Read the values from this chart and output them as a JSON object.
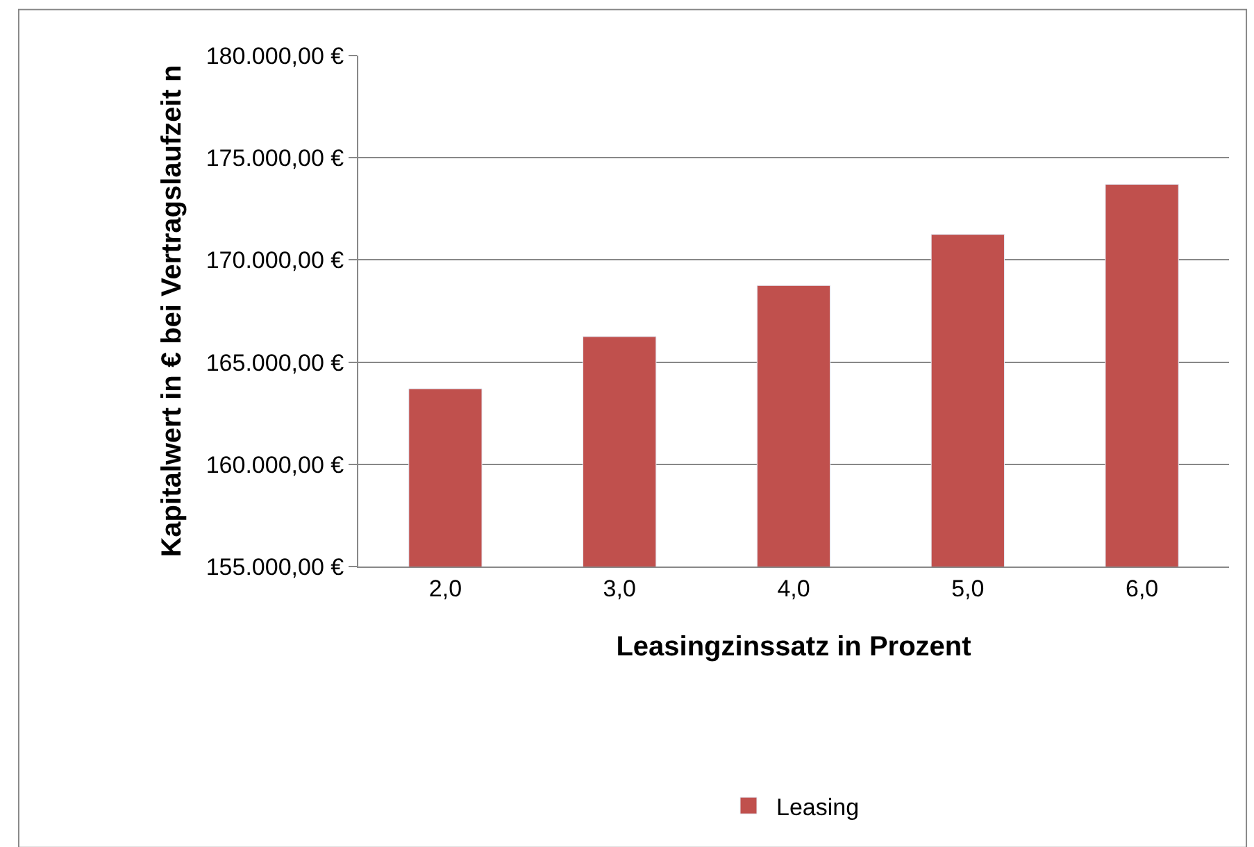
{
  "chart_data": {
    "type": "bar",
    "xlabel": "Leasingzinssatz in Prozent",
    "ylabel": "Kapitalwert in € bei Vertragslaufzeit n",
    "categories": [
      "2,0",
      "3,0",
      "4,0",
      "5,0",
      "6,0"
    ],
    "series": [
      {
        "name": "Leasing",
        "color": "#c0504d",
        "values": [
          163700,
          166250,
          168750,
          171250,
          173700
        ]
      }
    ],
    "ylim": [
      155000,
      180000
    ],
    "yticks": [
      {
        "value": 155000,
        "label": "155.000,00 €"
      },
      {
        "value": 160000,
        "label": "160.000,00 €"
      },
      {
        "value": 165000,
        "label": "165.000,00 €"
      },
      {
        "value": 170000,
        "label": "170.000,00 €"
      },
      {
        "value": 175000,
        "label": "175.000,00 €"
      },
      {
        "value": 180000,
        "label": "180.000,00 €"
      }
    ],
    "grid": "y",
    "legend": "bottom"
  }
}
